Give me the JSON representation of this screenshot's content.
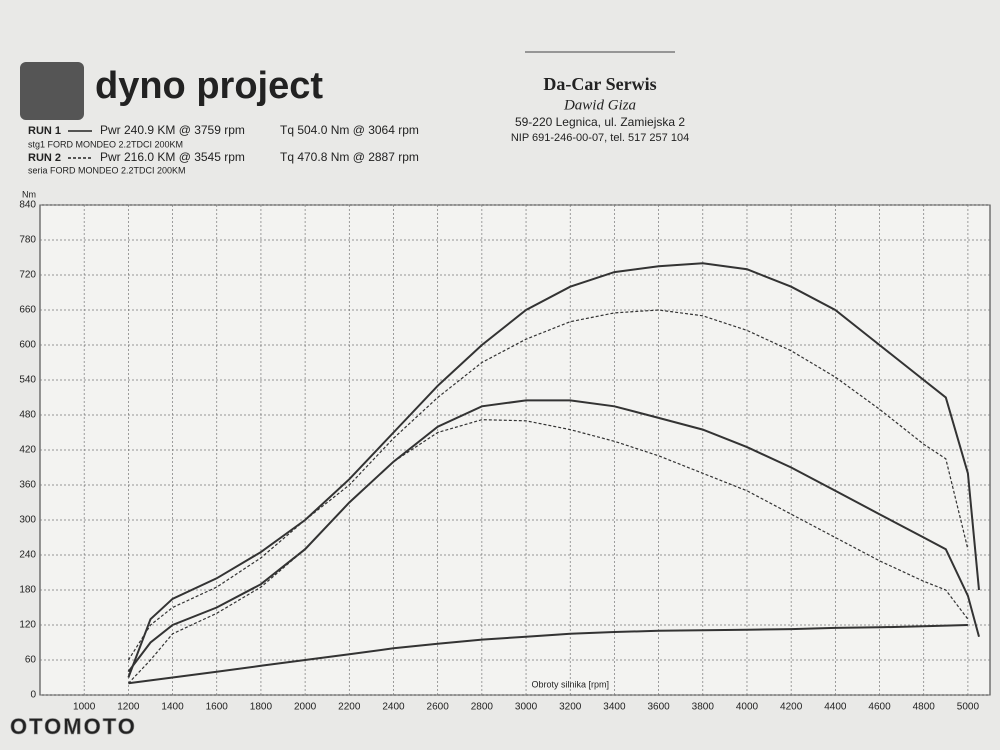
{
  "header": {
    "logo": "dyno project",
    "runs": [
      {
        "label": "RUN 1",
        "power": "Pwr 240.9 KM @ 3759 rpm",
        "torque": "Tq 504.0 Nm @ 3064 rpm",
        "car": "stg1 FORD MONDEO 2.2TDCI 200KM"
      },
      {
        "label": "RUN 2",
        "power": "Pwr 216.0 KM @ 3545 rpm",
        "torque": "Tq 470.8 Nm @ 2887 rpm",
        "car": "seria FORD MONDEO 2.2TDCI 200KM"
      }
    ],
    "company": "Da-Car Serwis",
    "owner": "Dawid Giza",
    "address": "59-220 Legnica, ul. Zamiejska 2",
    "contact": "NIP 691-246-00-07, tel. 517 257 104"
  },
  "watermark": "OTOMOTO",
  "chart_data": {
    "type": "line",
    "y_label": "Nm",
    "x_label": "Obroty silnika [rpm]",
    "x": [
      1200,
      1300,
      1400,
      1600,
      1800,
      2000,
      2200,
      2400,
      2600,
      2800,
      3000,
      3200,
      3400,
      3600,
      3800,
      4000,
      4200,
      4400,
      4600,
      4800,
      4900,
      5000,
      5050
    ],
    "series": [
      {
        "color": "#333333",
        "dash": false,
        "values": [
          30,
          130,
          165,
          200,
          245,
          300,
          370,
          450,
          530,
          600,
          660,
          700,
          725,
          735,
          740,
          730,
          700,
          660,
          600,
          540,
          510,
          380,
          180
        ]
      },
      {
        "color": "#333333",
        "dash": true,
        "values": [
          60,
          120,
          150,
          185,
          235,
          300,
          360,
          440,
          510,
          570,
          610,
          640,
          655,
          660,
          650,
          625,
          590,
          545,
          490,
          430,
          405,
          250,
          null
        ]
      },
      {
        "color": "#333333",
        "dash": false,
        "values": [
          40,
          90,
          120,
          150,
          190,
          250,
          330,
          400,
          460,
          495,
          505,
          505,
          495,
          475,
          455,
          425,
          390,
          350,
          310,
          270,
          250,
          170,
          100
        ]
      },
      {
        "color": "#333333",
        "dash": true,
        "values": [
          20,
          60,
          105,
          140,
          185,
          250,
          330,
          400,
          450,
          472,
          470,
          455,
          435,
          410,
          380,
          350,
          310,
          270,
          230,
          195,
          180,
          130,
          null
        ]
      },
      {
        "color": "#333333",
        "dash": false,
        "values": [
          20,
          25,
          30,
          40,
          50,
          60,
          70,
          80,
          88,
          95,
          100,
          105,
          108,
          110,
          111,
          112,
          113,
          115,
          116,
          118,
          119,
          120,
          null
        ]
      }
    ],
    "xlim": [
      800,
      5100
    ],
    "ylim": [
      0,
      840
    ],
    "xticks": [
      1000,
      1200,
      1400,
      1600,
      1800,
      2000,
      2200,
      2400,
      2600,
      2800,
      3000,
      3200,
      3400,
      3600,
      3800,
      4000,
      4200,
      4400,
      4600,
      4800,
      5000
    ],
    "yticks": [
      0,
      60,
      120,
      180,
      240,
      300,
      360,
      420,
      480,
      540,
      600,
      660,
      720,
      780,
      840
    ],
    "grid": true
  }
}
